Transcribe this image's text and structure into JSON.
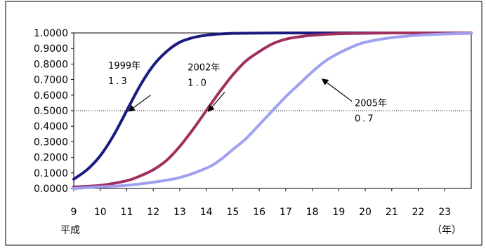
{
  "chart_data": {
    "type": "line",
    "x_axis": {
      "min": 9,
      "max": 24,
      "ticks": [
        9,
        10,
        11,
        12,
        13,
        14,
        15,
        16,
        17,
        18,
        19,
        20,
        21,
        22,
        23
      ],
      "tick_labels": [
        "9",
        "10",
        "11",
        "12",
        "13",
        "14",
        "15",
        "16",
        "17",
        "18",
        "19",
        "20",
        "21",
        "22",
        "23"
      ],
      "era_label": "平成",
      "unit_label": "（年）"
    },
    "y_axis": {
      "min": 0,
      "max": 1,
      "ticks": [
        0,
        0.1,
        0.2,
        0.3,
        0.4,
        0.5,
        0.6,
        0.7,
        0.8,
        0.9,
        1.0
      ],
      "tick_labels": [
        "0.0000",
        "0.1000",
        "0.2000",
        "0.3000",
        "0.4000",
        "0.5000",
        "0.6000",
        "0.7000",
        "0.8000",
        "0.9000",
        "1.0000"
      ]
    },
    "reference_line": {
      "y": 0.5,
      "style": "dotted"
    },
    "grid": false,
    "series": [
      {
        "x": [
          9,
          9.5,
          10,
          10.5,
          11,
          11.5,
          12,
          12.5,
          13,
          13.5,
          14,
          14.5,
          15,
          16,
          17,
          18,
          19,
          20,
          21,
          22,
          23,
          24
        ],
        "y": [
          0.06,
          0.12,
          0.21,
          0.34,
          0.5,
          0.66,
          0.79,
          0.88,
          0.94,
          0.97,
          0.985,
          0.993,
          0.997,
          0.999,
          1.0,
          1.0,
          1.0,
          1.0,
          1.0,
          1.0,
          1.0,
          1.0
        ],
        "color": "#1a1a80"
      },
      {
        "x": [
          9,
          10,
          11,
          11.5,
          12,
          12.5,
          13,
          13.5,
          14,
          14.5,
          15,
          15.5,
          16,
          16.5,
          17,
          17.5,
          18,
          19,
          20,
          21,
          22,
          23,
          24
        ],
        "y": [
          0.01,
          0.02,
          0.05,
          0.08,
          0.12,
          0.18,
          0.27,
          0.38,
          0.5,
          0.62,
          0.73,
          0.82,
          0.88,
          0.93,
          0.96,
          0.975,
          0.985,
          0.995,
          0.998,
          1.0,
          1.0,
          1.0,
          1.0
        ],
        "color": "#a03060"
      },
      {
        "x": [
          9,
          10,
          11,
          12,
          13,
          14,
          14.5,
          15,
          15.5,
          16,
          16.5,
          17,
          17.5,
          18,
          18.5,
          19,
          19.5,
          20,
          21,
          22,
          23,
          24
        ],
        "y": [
          0.0,
          0.01,
          0.02,
          0.04,
          0.07,
          0.13,
          0.18,
          0.25,
          0.32,
          0.41,
          0.5,
          0.59,
          0.67,
          0.75,
          0.82,
          0.87,
          0.91,
          0.94,
          0.97,
          0.985,
          0.993,
          0.997
        ],
        "color": "#a0a0f0"
      }
    ],
    "annotations": [
      {
        "year": "1999年",
        "value": "1.3",
        "arrow_from": [
          11.9,
          0.6
        ],
        "arrow_to": [
          11.1,
          0.5
        ],
        "label_pos": [
          10.3,
          0.77
        ]
      },
      {
        "year": "2002年",
        "value": "1.0",
        "arrow_from": [
          14.7,
          0.62
        ],
        "arrow_to": [
          14.1,
          0.5
        ],
        "label_pos": [
          13.3,
          0.76
        ]
      },
      {
        "year": "2005年",
        "value": "0.7",
        "arrow_from": [
          19.5,
          0.56
        ],
        "arrow_to": [
          18.4,
          0.7
        ],
        "label_pos": [
          19.6,
          0.53
        ]
      }
    ]
  }
}
